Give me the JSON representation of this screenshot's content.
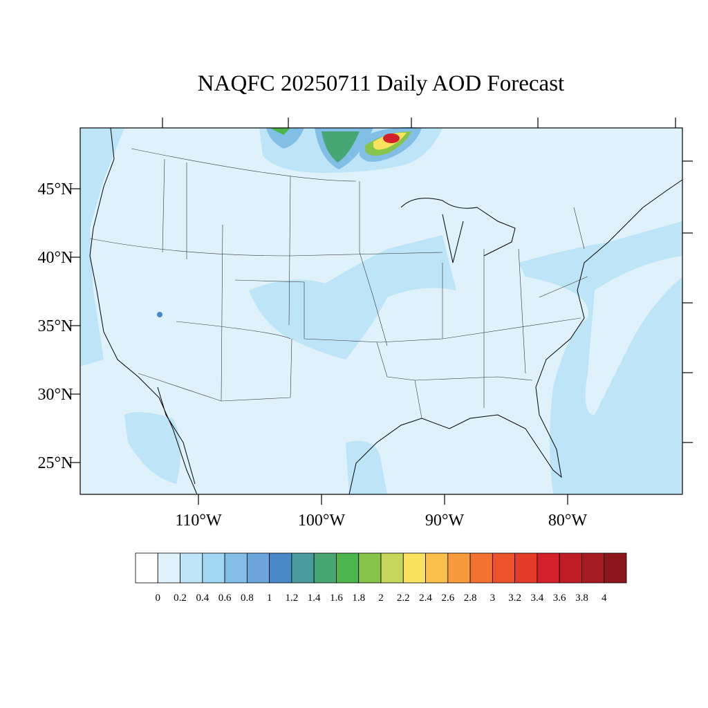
{
  "title": "NAQFC 20250711 Daily AOD Forecast",
  "lat_labels": [
    "45°N",
    "40°N",
    "35°N",
    "30°N",
    "25°N"
  ],
  "lon_labels": [
    "110°W",
    "100°W",
    "90°W",
    "80°W"
  ],
  "colorbar": {
    "levels": [
      0,
      0.2,
      0.4,
      0.6,
      0.8,
      1,
      1.2,
      1.4,
      1.6,
      1.8,
      2,
      2.2,
      2.4,
      2.6,
      2.8,
      3,
      3.2,
      3.4,
      3.6,
      3.8,
      4
    ],
    "colors": [
      "#ffffff",
      "#dff2fb",
      "#bee5f7",
      "#a0d7f2",
      "#82bfe6",
      "#6aa6da",
      "#4a88c8",
      "#4a9a9e",
      "#48a674",
      "#4bb54b",
      "#86c44a",
      "#c5d65a",
      "#f8e25e",
      "#f9bf4a",
      "#f79a3e",
      "#f47230",
      "#ec532a",
      "#e23b27",
      "#d4202a",
      "#be1c26",
      "#a61a22",
      "#8c1619"
    ]
  }
}
